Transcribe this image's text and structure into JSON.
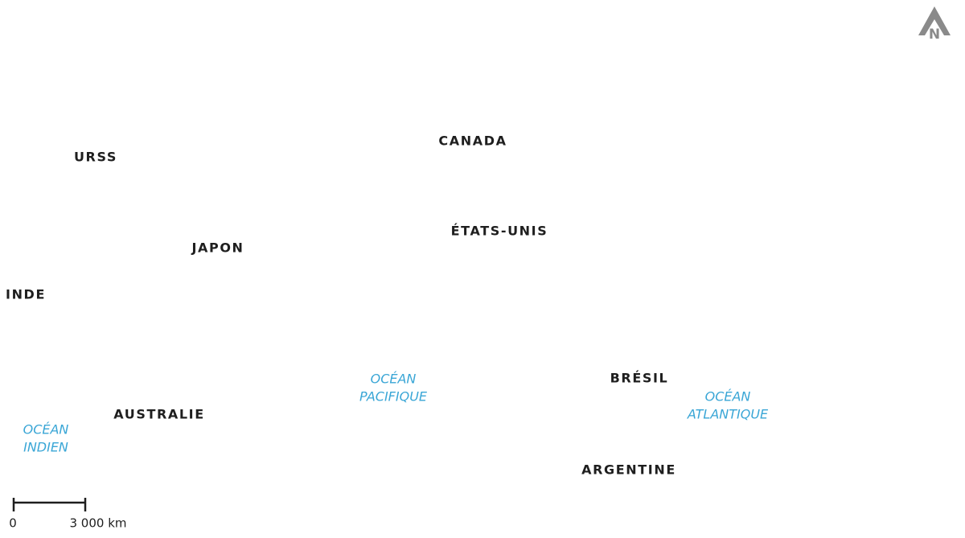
{
  "countries": [
    "URSS",
    "CANADA",
    "ÉTATS-UNIS",
    "JAPON",
    "INDE",
    "BRÉSIL",
    "AUSTRALIE",
    "ARGENTINE"
  ],
  "oceans": [
    [
      "OCÉAN",
      "INDIEN"
    ],
    [
      "OCÉAN",
      "PACIFIQUE"
    ],
    [
      "OCÉAN",
      "ATLANTIQUE"
    ]
  ],
  "scale": {
    "start": "0",
    "end": "3 000 km"
  },
  "north": "N"
}
